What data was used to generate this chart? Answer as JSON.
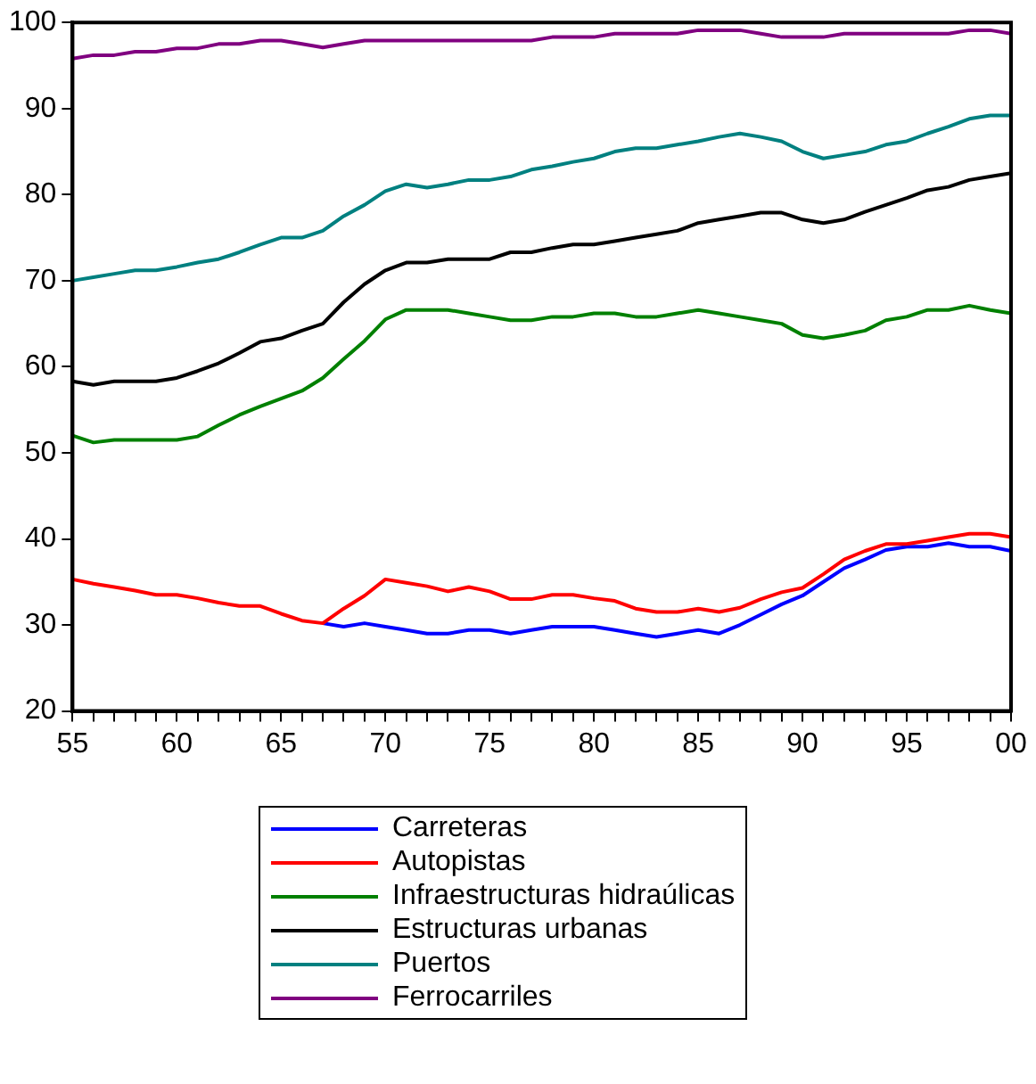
{
  "chart_data": {
    "type": "line",
    "x": [
      1955,
      1956,
      1957,
      1958,
      1959,
      1960,
      1961,
      1962,
      1963,
      1964,
      1965,
      1966,
      1967,
      1968,
      1969,
      1970,
      1971,
      1972,
      1973,
      1974,
      1975,
      1976,
      1977,
      1978,
      1979,
      1980,
      1981,
      1982,
      1983,
      1984,
      1985,
      1986,
      1987,
      1988,
      1989,
      1990,
      1991,
      1992,
      1993,
      1994,
      1995,
      1996,
      1997,
      1998,
      1999,
      2000
    ],
    "series": [
      {
        "name": "Carreteras",
        "color": "#0000ff",
        "values": [
          null,
          null,
          null,
          null,
          null,
          null,
          null,
          null,
          null,
          null,
          null,
          null,
          30.2,
          29.8,
          30.2,
          29.8,
          29.4,
          29.0,
          29.0,
          29.4,
          29.4,
          29.0,
          29.4,
          29.8,
          29.8,
          29.8,
          29.4,
          29.0,
          28.6,
          29.0,
          29.4,
          29.0,
          30.0,
          31.2,
          32.4,
          33.4,
          35.0,
          36.6,
          37.6,
          38.7,
          39.1,
          39.1,
          39.5,
          39.1,
          39.1,
          38.6
        ]
      },
      {
        "name": "Autopistas",
        "color": "#ff0000",
        "values": [
          35.3,
          34.8,
          34.4,
          34.0,
          33.5,
          33.5,
          33.1,
          32.6,
          32.2,
          32.2,
          31.3,
          30.5,
          30.2,
          31.9,
          33.4,
          35.3,
          34.9,
          34.5,
          33.9,
          34.4,
          33.9,
          33.0,
          33.0,
          33.5,
          33.5,
          33.1,
          32.8,
          31.9,
          31.5,
          31.5,
          31.9,
          31.5,
          32.0,
          33.0,
          33.8,
          34.3,
          35.9,
          37.6,
          38.6,
          39.4,
          39.4,
          39.8,
          40.2,
          40.6,
          40.6,
          40.2
        ]
      },
      {
        "name": "Infraestructuras hidraúlicas",
        "color": "#008000",
        "values": [
          52.0,
          51.2,
          51.5,
          51.5,
          51.5,
          51.5,
          51.9,
          53.2,
          54.4,
          55.4,
          56.3,
          57.2,
          58.7,
          60.9,
          63.0,
          65.5,
          66.6,
          66.6,
          66.6,
          66.2,
          65.8,
          65.4,
          65.4,
          65.8,
          65.8,
          66.2,
          66.2,
          65.8,
          65.8,
          66.2,
          66.6,
          66.2,
          65.8,
          65.4,
          65.0,
          63.7,
          63.3,
          63.7,
          64.2,
          65.4,
          65.8,
          66.6,
          66.6,
          67.1,
          66.6,
          66.2
        ]
      },
      {
        "name": "Estructuras urbanas",
        "color": "#000000",
        "values": [
          58.3,
          57.9,
          58.3,
          58.3,
          58.3,
          58.7,
          59.5,
          60.4,
          61.6,
          62.9,
          63.3,
          64.2,
          65.0,
          67.5,
          69.6,
          71.2,
          72.1,
          72.1,
          72.5,
          72.5,
          72.5,
          73.3,
          73.3,
          73.8,
          74.2,
          74.2,
          74.6,
          75.0,
          75.4,
          75.8,
          76.7,
          77.1,
          77.5,
          77.9,
          77.9,
          77.1,
          76.7,
          77.1,
          78.0,
          78.8,
          79.6,
          80.5,
          80.9,
          81.7,
          82.1,
          82.5
        ]
      },
      {
        "name": "Puertos",
        "color": "#008080",
        "values": [
          70.0,
          70.4,
          70.8,
          71.2,
          71.2,
          71.6,
          72.1,
          72.5,
          73.3,
          74.2,
          75.0,
          75.0,
          75.8,
          77.5,
          78.8,
          80.4,
          81.2,
          80.8,
          81.2,
          81.7,
          81.7,
          82.1,
          82.9,
          83.3,
          83.8,
          84.2,
          85.0,
          85.4,
          85.4,
          85.8,
          86.2,
          86.7,
          87.1,
          86.7,
          86.2,
          85.0,
          84.2,
          84.6,
          85.0,
          85.8,
          86.2,
          87.1,
          87.9,
          88.8,
          89.2,
          89.2
        ]
      },
      {
        "name": "Ferrocarriles",
        "color": "#800080",
        "values": [
          95.8,
          96.2,
          96.2,
          96.6,
          96.6,
          97.0,
          97.0,
          97.5,
          97.5,
          97.9,
          97.9,
          97.5,
          97.1,
          97.5,
          97.9,
          97.9,
          97.9,
          97.9,
          97.9,
          97.9,
          97.9,
          97.9,
          97.9,
          98.3,
          98.3,
          98.3,
          98.7,
          98.7,
          98.7,
          98.7,
          99.1,
          99.1,
          99.1,
          98.7,
          98.3,
          98.3,
          98.3,
          98.7,
          98.7,
          98.7,
          98.7,
          98.7,
          98.7,
          99.1,
          99.1,
          98.7
        ]
      }
    ],
    "xlim": [
      1955,
      2000
    ],
    "xticks": [
      {
        "value": 1955,
        "label": "55"
      },
      {
        "value": 1956,
        "label": null
      },
      {
        "value": 1957,
        "label": null
      },
      {
        "value": 1958,
        "label": null
      },
      {
        "value": 1959,
        "label": null
      },
      {
        "value": 1960,
        "label": "60"
      },
      {
        "value": 1961,
        "label": null
      },
      {
        "value": 1962,
        "label": null
      },
      {
        "value": 1963,
        "label": null
      },
      {
        "value": 1964,
        "label": null
      },
      {
        "value": 1965,
        "label": "65"
      },
      {
        "value": 1966,
        "label": null
      },
      {
        "value": 1967,
        "label": null
      },
      {
        "value": 1968,
        "label": null
      },
      {
        "value": 1969,
        "label": null
      },
      {
        "value": 1970,
        "label": "70"
      },
      {
        "value": 1971,
        "label": null
      },
      {
        "value": 1972,
        "label": null
      },
      {
        "value": 1973,
        "label": null
      },
      {
        "value": 1974,
        "label": null
      },
      {
        "value": 1975,
        "label": "75"
      },
      {
        "value": 1976,
        "label": null
      },
      {
        "value": 1977,
        "label": null
      },
      {
        "value": 1978,
        "label": null
      },
      {
        "value": 1979,
        "label": null
      },
      {
        "value": 1980,
        "label": "80"
      },
      {
        "value": 1981,
        "label": null
      },
      {
        "value": 1982,
        "label": null
      },
      {
        "value": 1983,
        "label": null
      },
      {
        "value": 1984,
        "label": null
      },
      {
        "value": 1985,
        "label": "85"
      },
      {
        "value": 1986,
        "label": null
      },
      {
        "value": 1987,
        "label": null
      },
      {
        "value": 1988,
        "label": null
      },
      {
        "value": 1989,
        "label": null
      },
      {
        "value": 1990,
        "label": "90"
      },
      {
        "value": 1991,
        "label": null
      },
      {
        "value": 1992,
        "label": null
      },
      {
        "value": 1993,
        "label": null
      },
      {
        "value": 1994,
        "label": null
      },
      {
        "value": 1995,
        "label": "95"
      },
      {
        "value": 1996,
        "label": null
      },
      {
        "value": 1997,
        "label": null
      },
      {
        "value": 1998,
        "label": null
      },
      {
        "value": 1999,
        "label": null
      },
      {
        "value": 2000,
        "label": "00"
      }
    ],
    "ylim": [
      20,
      100
    ],
    "yticks": [
      20,
      30,
      40,
      50,
      60,
      70,
      80,
      90,
      100
    ],
    "grid": false,
    "legend": "bottom",
    "marker": "none",
    "line_style": "solid"
  }
}
